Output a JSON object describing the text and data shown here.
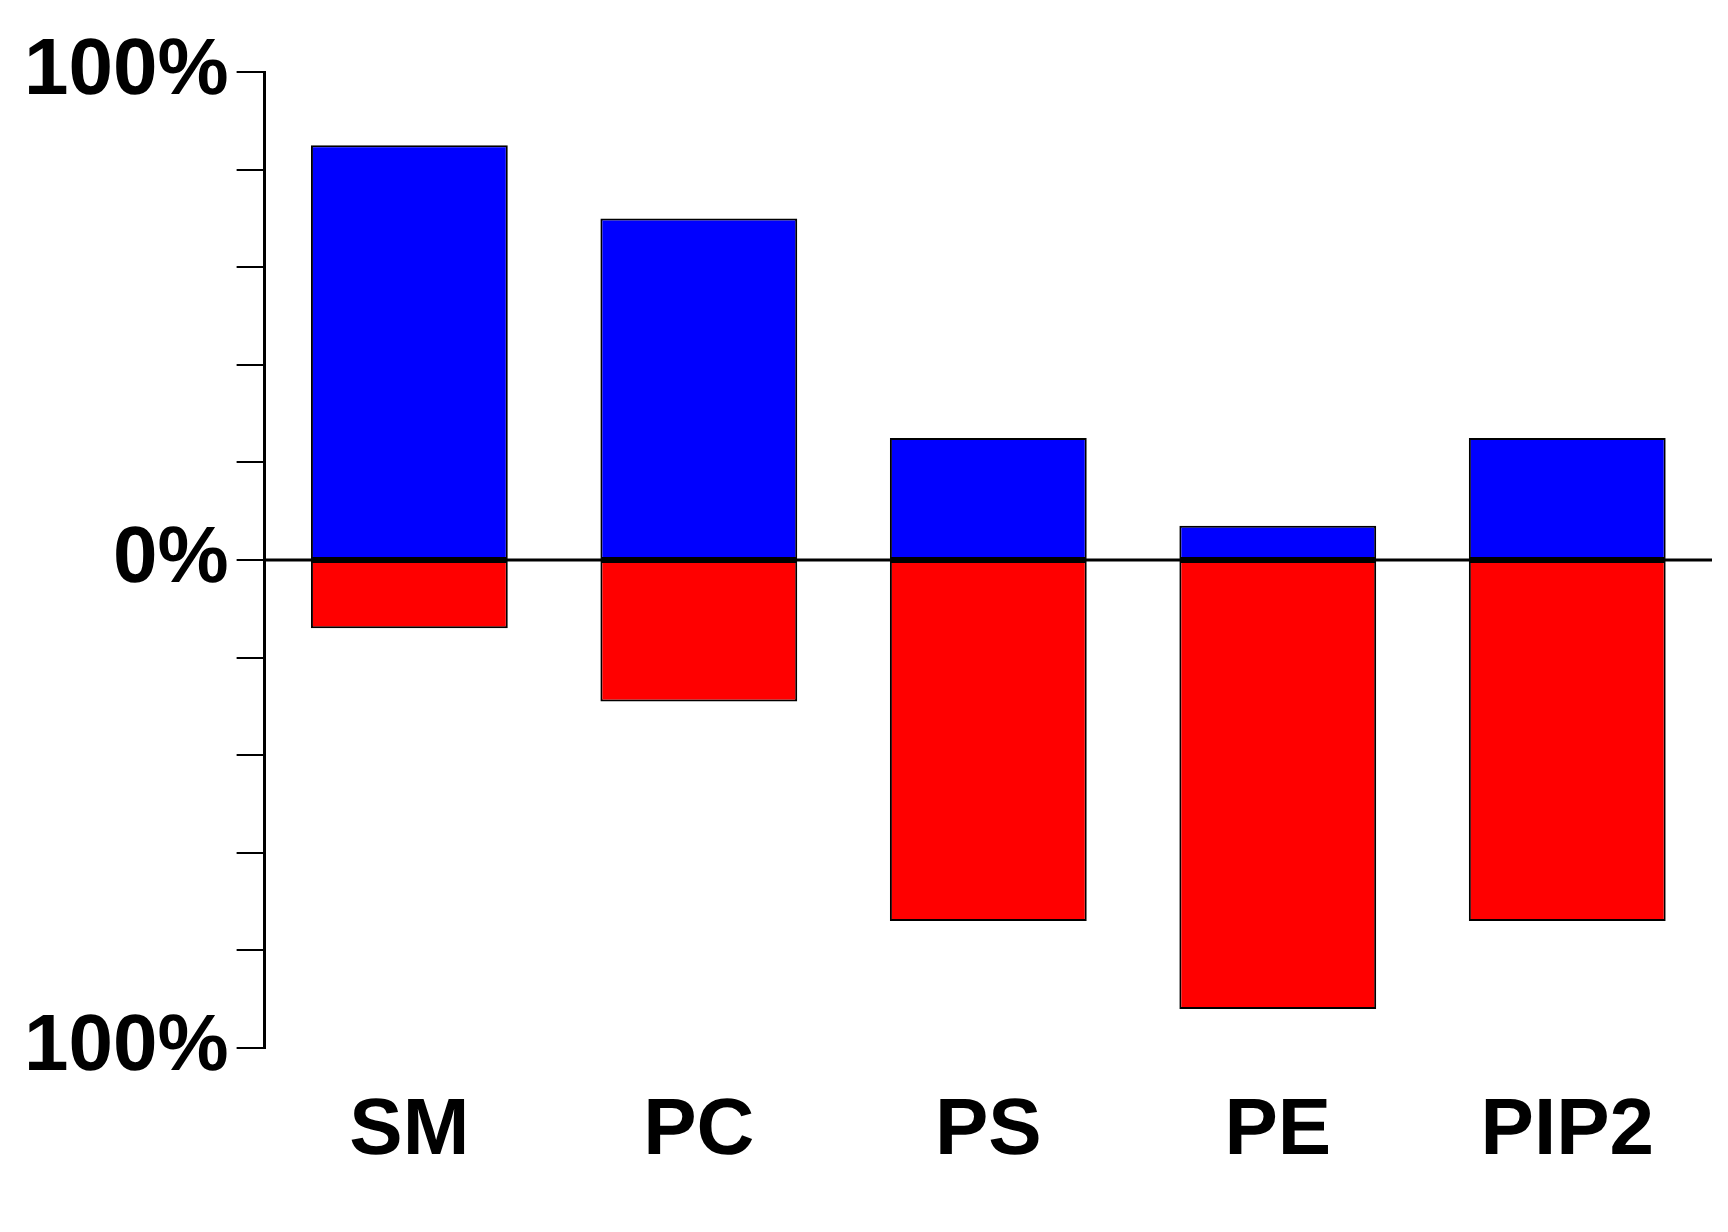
{
  "chart_data": {
    "type": "bar",
    "stacked": true,
    "categories": [
      "SM",
      "PC",
      "PS",
      "PE",
      "PIP2"
    ],
    "series": [
      {
        "color": "#0000ff",
        "values": [
          85,
          70,
          25,
          7,
          25
        ]
      },
      {
        "color": "#ff0000",
        "values": [
          -14,
          -29,
          -74,
          -92,
          -74
        ]
      }
    ],
    "ylim": [
      -100,
      100
    ],
    "yticks": [
      {
        "value": -100,
        "label": "100%"
      },
      {
        "value": -80,
        "label": null
      },
      {
        "value": -60,
        "label": null
      },
      {
        "value": -40,
        "label": null
      },
      {
        "value": -20,
        "label": null
      },
      {
        "value": 0,
        "label": "0%"
      },
      {
        "value": 20,
        "label": null
      },
      {
        "value": 40,
        "label": null
      },
      {
        "value": 60,
        "label": null
      },
      {
        "value": 80,
        "label": null
      },
      {
        "value": 100,
        "label": "100%"
      }
    ],
    "ref_lines": [
      {
        "axis": "y",
        "value": 0,
        "color": "#000000"
      }
    ],
    "grid": false,
    "legend": false
  }
}
